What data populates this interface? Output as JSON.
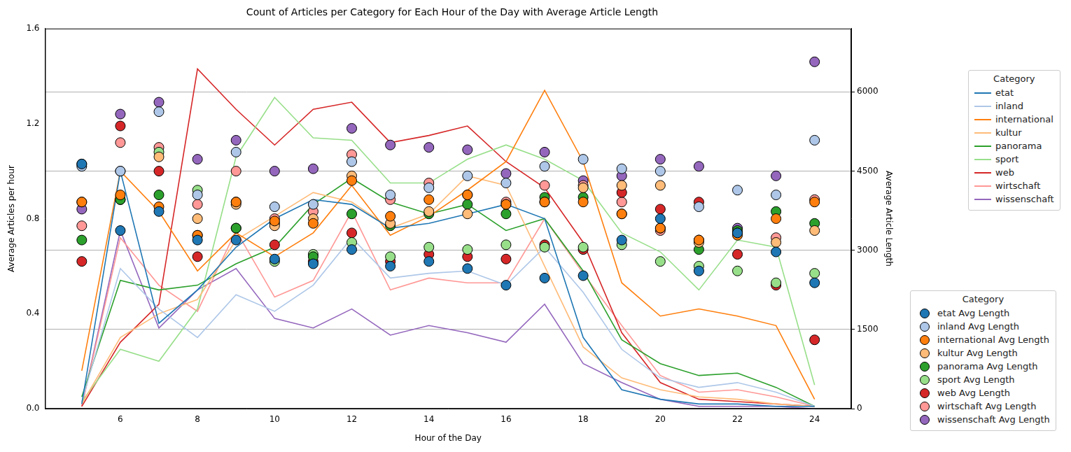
{
  "chart_data": {
    "type": "line",
    "title": "Count of Articles per Category for Each Hour of the Day with Average Article Length",
    "x_label": "Hour of the Day",
    "y_label": "Average Articles per hour",
    "y2_label": "Average Article Length",
    "x": [
      5,
      6,
      7,
      8,
      9,
      10,
      11,
      12,
      13,
      14,
      15,
      16,
      17,
      18,
      19,
      20,
      21,
      22,
      23,
      24
    ],
    "xlim": [
      4.05,
      24.95
    ],
    "xticks": [
      6,
      8,
      10,
      12,
      14,
      16,
      18,
      20,
      22,
      24
    ],
    "ylim": [
      0,
      1.6
    ],
    "yticks": [
      {
        "value": 0,
        "label": "0.0"
      },
      0.4,
      0.8,
      1.2,
      1.6
    ],
    "y2lim": [
      0,
      7200
    ],
    "y2ticks": [
      0,
      1500,
      3000,
      4500,
      6000
    ],
    "grid": true,
    "legend": "right",
    "legend_title": "Category",
    "series": [
      {
        "name": "etat",
        "type": "line",
        "color": "#1f77b4",
        "values": [
          0.02,
          1.0,
          0.36,
          0.5,
          0.68,
          0.8,
          0.88,
          0.86,
          0.76,
          0.78,
          0.82,
          0.86,
          0.8,
          0.3,
          0.08,
          0.04,
          0.02,
          0.02,
          0.01,
          0.01
        ]
      },
      {
        "name": "inland",
        "type": "line",
        "color": "#aec7e8",
        "values": [
          0.03,
          0.59,
          0.42,
          0.3,
          0.48,
          0.41,
          0.52,
          0.72,
          0.55,
          0.57,
          0.58,
          0.52,
          0.68,
          0.49,
          0.25,
          0.13,
          0.09,
          0.11,
          0.07,
          0.01
        ]
      },
      {
        "name": "international",
        "type": "line",
        "color": "#ff7f0e",
        "values": [
          0.16,
          1.0,
          0.83,
          0.58,
          0.74,
          0.64,
          0.74,
          0.94,
          0.73,
          0.81,
          0.92,
          1.04,
          1.34,
          1.04,
          0.53,
          0.39,
          0.42,
          0.39,
          0.35,
          0.04
        ]
      },
      {
        "name": "kultur",
        "type": "line",
        "color": "#ffbb78",
        "values": [
          0.02,
          0.3,
          0.4,
          0.46,
          0.71,
          0.81,
          0.91,
          0.87,
          0.76,
          0.82,
          0.98,
          0.94,
          0.6,
          0.26,
          0.13,
          0.08,
          0.05,
          0.04,
          0.02,
          0.01
        ]
      },
      {
        "name": "panorama",
        "type": "line",
        "color": "#2ca02c",
        "values": [
          0.05,
          0.54,
          0.5,
          0.52,
          0.61,
          0.68,
          0.86,
          0.97,
          0.87,
          0.82,
          0.86,
          0.75,
          0.8,
          0.58,
          0.29,
          0.19,
          0.14,
          0.15,
          0.09,
          0.01
        ]
      },
      {
        "name": "sport",
        "type": "line",
        "color": "#98df8a",
        "values": [
          0.03,
          0.25,
          0.2,
          0.42,
          1.06,
          1.31,
          1.14,
          1.13,
          0.95,
          0.95,
          1.05,
          1.11,
          1.05,
          0.96,
          0.74,
          0.66,
          0.5,
          0.71,
          0.68,
          0.1
        ]
      },
      {
        "name": "web",
        "type": "line",
        "color": "#d62728",
        "values": [
          0.01,
          0.28,
          0.44,
          1.43,
          1.26,
          1.11,
          1.26,
          1.29,
          1.12,
          1.15,
          1.19,
          1.04,
          0.93,
          0.7,
          0.32,
          0.11,
          0.04,
          0.03,
          0.02,
          0.01
        ]
      },
      {
        "name": "wirtschaft",
        "type": "line",
        "color": "#ff9896",
        "values": [
          0.01,
          0.72,
          0.52,
          0.41,
          0.75,
          0.47,
          0.54,
          0.83,
          0.5,
          0.55,
          0.53,
          0.53,
          0.8,
          0.57,
          0.35,
          0.14,
          0.07,
          0.08,
          0.05,
          0.01
        ]
      },
      {
        "name": "wissenschaft",
        "type": "line",
        "color": "#9467bd",
        "values": [
          0.01,
          0.75,
          0.34,
          0.5,
          0.59,
          0.38,
          0.34,
          0.42,
          0.31,
          0.35,
          0.32,
          0.28,
          0.44,
          0.19,
          0.11,
          0.04,
          0.01,
          0.01,
          0.01,
          0
        ]
      },
      {
        "name": "etat Avg Length",
        "type": "scatter",
        "marker": "o",
        "axis": "y2",
        "color": "#1f77b4",
        "values": [
          4635,
          3375,
          3735,
          3195,
          3195,
          2835,
          2745,
          3015,
          2700,
          2790,
          2655,
          2340,
          2475,
          2520,
          3195,
          3600,
          2610,
          3330,
          2970,
          2385
        ]
      },
      {
        "name": "inland Avg Length",
        "type": "scatter",
        "marker": "o",
        "axis": "y2",
        "color": "#aec7e8",
        "values": [
          4590,
          4500,
          5625,
          4050,
          4860,
          3825,
          3870,
          4680,
          4050,
          4185,
          4410,
          4275,
          4590,
          4725,
          4545,
          4500,
          3825,
          4140,
          4050,
          5085
        ]
      },
      {
        "name": "international Avg Length",
        "type": "scatter",
        "marker": "o",
        "axis": "y2",
        "color": "#ff7f0e",
        "values": [
          3915,
          4050,
          3825,
          3285,
          3915,
          3555,
          3510,
          4320,
          3645,
          3960,
          4050,
          3870,
          3915,
          3915,
          3690,
          3420,
          3195,
          3285,
          3600,
          3915
        ]
      },
      {
        "name": "kultur Avg Length",
        "type": "scatter",
        "marker": "o",
        "axis": "y2",
        "color": "#ffbb78",
        "values": [
          3915,
          4500,
          4770,
          3600,
          3870,
          3465,
          3600,
          4410,
          3510,
          3735,
          3690,
          3870,
          3915,
          4185,
          4230,
          4230,
          3150,
          3330,
          3150,
          3375
        ]
      },
      {
        "name": "panorama Avg Length",
        "type": "scatter",
        "marker": "o",
        "axis": "y2",
        "color": "#2ca02c",
        "values": [
          3195,
          3960,
          4050,
          3285,
          3420,
          3510,
          2880,
          3690,
          3465,
          3690,
          3870,
          3690,
          4005,
          4005,
          3690,
          3420,
          3015,
          3375,
          3735,
          3510
        ]
      },
      {
        "name": "sport Avg Length",
        "type": "scatter",
        "marker": "o",
        "axis": "y2",
        "color": "#98df8a",
        "values": [
          4635,
          3960,
          4860,
          4140,
          3420,
          2790,
          2925,
          3150,
          2880,
          3060,
          3015,
          3105,
          3060,
          3060,
          3105,
          2790,
          2700,
          2610,
          2385,
          2565
        ]
      },
      {
        "name": "web Avg Length",
        "type": "scatter",
        "marker": "o",
        "axis": "y2",
        "color": "#d62728",
        "values": [
          2790,
          5355,
          4500,
          2880,
          3915,
          3105,
          2790,
          3330,
          2790,
          2925,
          2880,
          2835,
          3105,
          3015,
          4095,
          3780,
          3915,
          2925,
          2340,
          1305
        ]
      },
      {
        "name": "wirtschaft Avg Length",
        "type": "scatter",
        "marker": "o",
        "axis": "y2",
        "color": "#ff9896",
        "values": [
          3465,
          5040,
          4950,
          3870,
          4500,
          3600,
          3735,
          4815,
          3960,
          4275,
          4050,
          3915,
          4230,
          4230,
          3915,
          3375,
          3195,
          3330,
          3240,
          3960
        ]
      },
      {
        "name": "wissenschaft Avg Length",
        "type": "scatter",
        "marker": "o",
        "axis": "y2",
        "color": "#9467bd",
        "values": [
          3780,
          5580,
          5805,
          4725,
          5085,
          4500,
          4545,
          5310,
          4995,
          4950,
          4905,
          4455,
          4860,
          4320,
          4410,
          4725,
          4590,
          3420,
          4410,
          6570
        ]
      }
    ]
  }
}
